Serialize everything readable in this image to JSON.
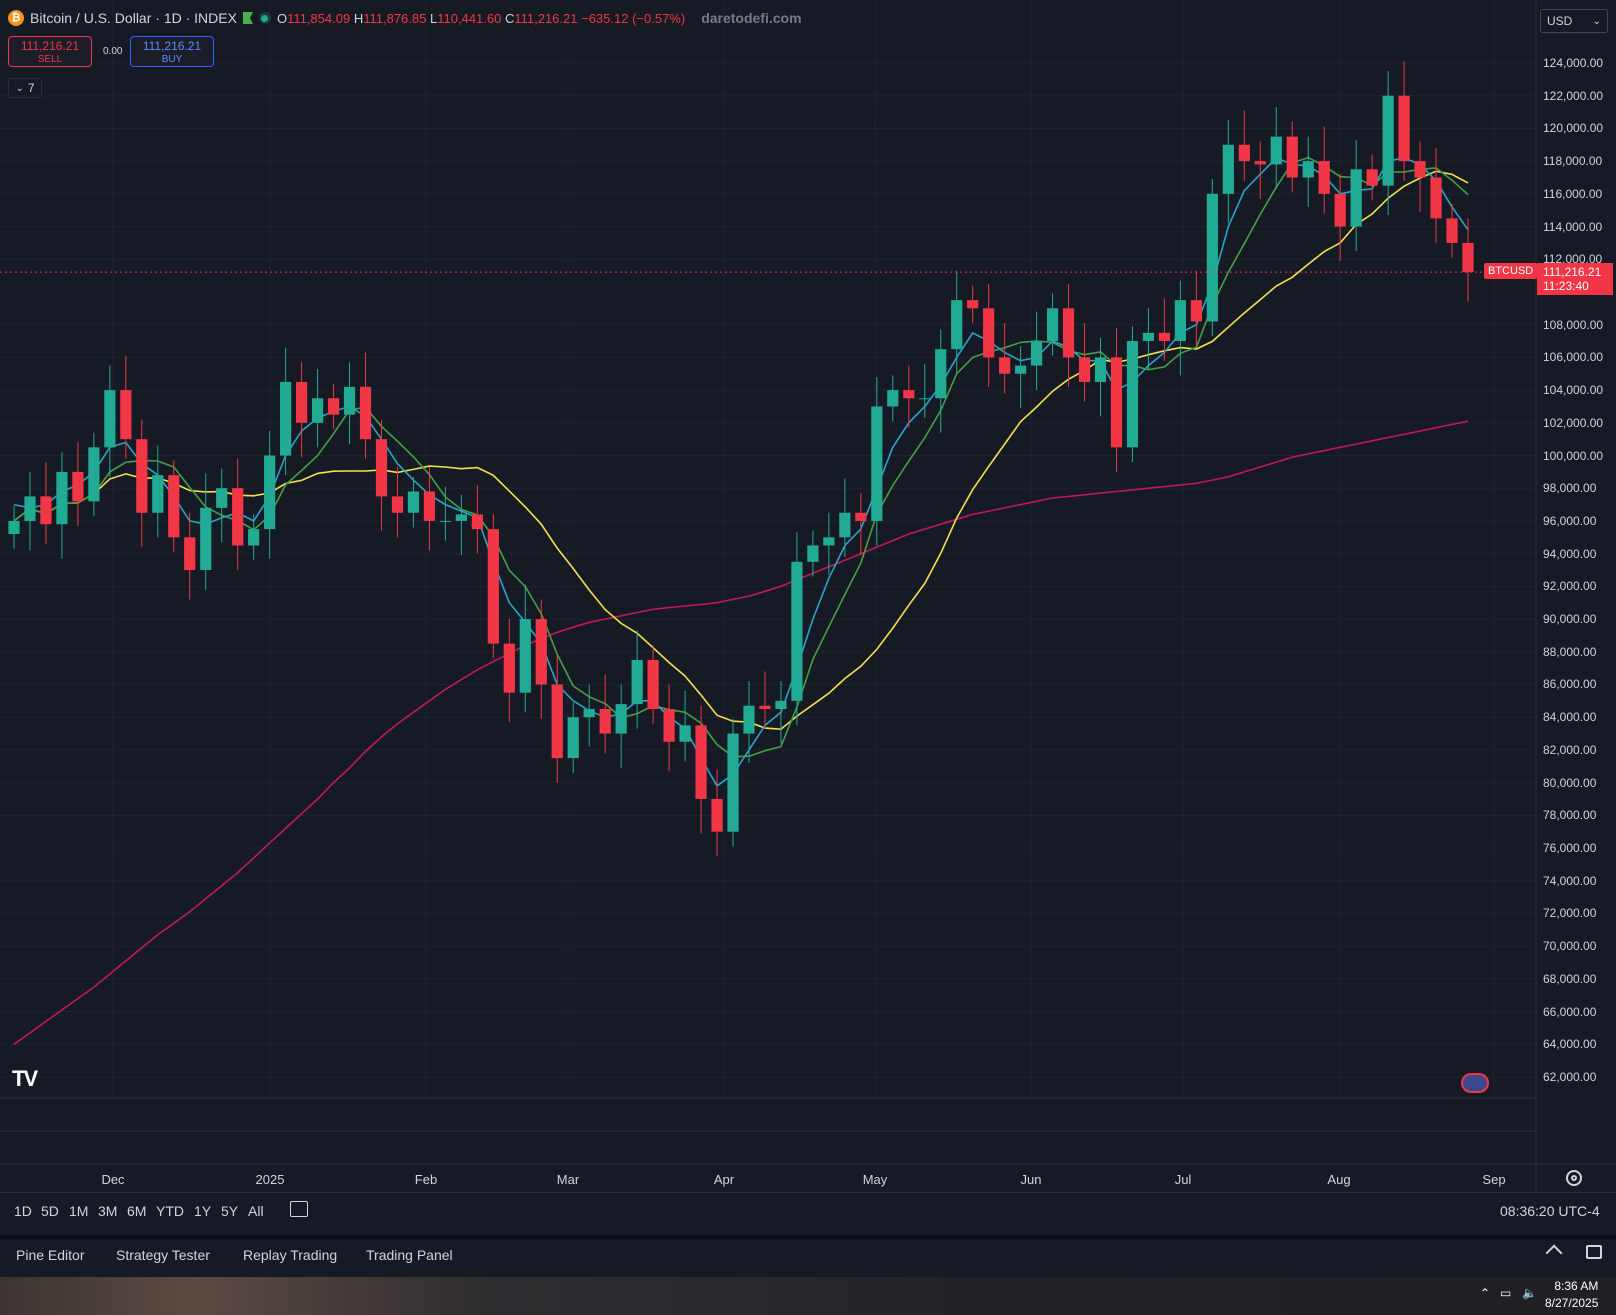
{
  "header": {
    "title": "Bitcoin / U.S. Dollar · 1D · INDEX",
    "coin_glyph": "₿",
    "ohlc": {
      "open_label": "O",
      "open": "111,854.09",
      "high_label": "H",
      "high": "111,876.85",
      "low_label": "L",
      "low": "110,441.60",
      "close_label": "C",
      "close": "111,216.21",
      "change": "−635.12 (−0.57%)"
    },
    "watermark": "daretodefi.com"
  },
  "trade": {
    "sell_price": "111,216.21",
    "sell_label": "SELL",
    "spread": "0.00",
    "buy_price": "111,216.21",
    "buy_label": "BUY"
  },
  "indicators_collapse": {
    "count": "7",
    "chevron": "chevron-down-icon"
  },
  "currency_select": {
    "value": "USD"
  },
  "price_axis": {
    "labels": [
      "124,000.00",
      "122,000.00",
      "120,000.00",
      "118,000.00",
      "116,000.00",
      "114,000.00",
      "112,000.00",
      "108,000.00",
      "106,000.00",
      "104,000.00",
      "102,000.00",
      "100,000.00",
      "98,000.00",
      "96,000.00",
      "94,000.00",
      "92,000.00",
      "90,000.00",
      "88,000.00",
      "86,000.00",
      "84,000.00",
      "82,000.00",
      "80,000.00",
      "78,000.00",
      "76,000.00",
      "74,000.00",
      "72,000.00",
      "70,000.00",
      "68,000.00",
      "66,000.00",
      "64,000.00",
      "62,000.00"
    ],
    "current_symbol": "BTCUSD",
    "current_price": "111,216.21",
    "countdown": "11:23:40"
  },
  "time_axis": {
    "months": [
      "Dec",
      "2025",
      "Feb",
      "Mar",
      "Apr",
      "May",
      "Jun",
      "Jul",
      "Aug",
      "Sep"
    ]
  },
  "range_bar": {
    "ranges": [
      "1D",
      "5D",
      "1M",
      "3M",
      "6M",
      "YTD",
      "1Y",
      "5Y",
      "All"
    ],
    "clock": "08:36:20 UTC-4"
  },
  "bottom_panels": {
    "tabs": [
      "Pine Editor",
      "Strategy Tester",
      "Replay Trading",
      "Trading Panel"
    ]
  },
  "taskbar": {
    "time": "8:36 AM",
    "date": "8/27/2025"
  },
  "colors": {
    "up": "#22ab94",
    "down": "#f23645",
    "ma_fast": "#26a6c9",
    "ma_mid": "#43a047",
    "ma_slow": "#f2e14d",
    "ma_long": "#c2185b",
    "background": "#161a25"
  },
  "chart_data": {
    "type": "candlestick",
    "x": [
      "Nov 27",
      "Nov 30",
      "Dec 3",
      "Dec 6",
      "Dec 9",
      "Dec 12",
      "Dec 15",
      "Dec 18",
      "Dec 21",
      "Dec 24",
      "Dec 27",
      "Dec 30",
      "Jan 2",
      "Jan 5",
      "Jan 8",
      "Jan 11",
      "Jan 14",
      "Jan 17",
      "Jan 20",
      "Jan 23",
      "Jan 26",
      "Jan 29",
      "Feb 1",
      "Feb 4",
      "Feb 7",
      "Feb 10",
      "Feb 13",
      "Feb 16",
      "Feb 19",
      "Feb 22",
      "Feb 25",
      "Feb 28",
      "Mar 3",
      "Mar 6",
      "Mar 9",
      "Mar 12",
      "Mar 15",
      "Mar 18",
      "Mar 21",
      "Mar 24",
      "Mar 27",
      "Mar 30",
      "Apr 2",
      "Apr 5",
      "Apr 8",
      "Apr 11",
      "Apr 14",
      "Apr 17",
      "Apr 20",
      "Apr 23",
      "Apr 26",
      "Apr 29",
      "May 2",
      "May 5",
      "May 8",
      "May 11",
      "May 14",
      "May 17",
      "May 20",
      "May 23",
      "May 26",
      "May 29",
      "Jun 1",
      "Jun 4",
      "Jun 7",
      "Jun 10",
      "Jun 13",
      "Jun 16",
      "Jun 19",
      "Jun 22",
      "Jun 25",
      "Jun 28",
      "Jul 1",
      "Jul 4",
      "Jul 7",
      "Jul 10",
      "Jul 13",
      "Jul 16",
      "Jul 19",
      "Jul 22",
      "Jul 25",
      "Jul 28",
      "Jul 31",
      "Aug 3",
      "Aug 6",
      "Aug 9",
      "Aug 12",
      "Aug 15",
      "Aug 18",
      "Aug 21",
      "Aug 24",
      "Aug 27"
    ],
    "close": [
      96000,
      97500,
      95800,
      99000,
      97200,
      100500,
      104000,
      101000,
      96500,
      98800,
      95000,
      93000,
      96800,
      98000,
      94500,
      95500,
      100000,
      104500,
      102000,
      103500,
      102500,
      104200,
      101000,
      97500,
      96500,
      97800,
      96000,
      96000,
      96400,
      95500,
      88500,
      85500,
      90000,
      86000,
      81500,
      84000,
      84500,
      83000,
      84800,
      87500,
      84500,
      82500,
      83500,
      79000,
      77000,
      83000,
      84700,
      84500,
      85000,
      93500,
      94500,
      95000,
      96500,
      96000,
      103000,
      104000,
      103500,
      103500,
      106500,
      109500,
      109000,
      106000,
      105000,
      105500,
      107000,
      109000,
      106000,
      104500,
      106000,
      100500,
      107000,
      107500,
      107000,
      109500,
      108200,
      116000,
      119000,
      118000,
      117800,
      119500,
      117000,
      118000,
      116000,
      114000,
      117500,
      116500,
      122000,
      118000,
      117000,
      114500,
      113000,
      111216
    ],
    "ma_fast_approx": [
      97000,
      96800,
      97000,
      97800,
      98200,
      99000,
      100500,
      100800,
      99500,
      98800,
      97500,
      96000,
      95800,
      96200,
      96500,
      96000,
      97500,
      100000,
      101500,
      102300,
      102700,
      103000,
      102400,
      101000,
      99500,
      98500,
      97600,
      97000,
      96600,
      96200,
      93500,
      91000,
      89800,
      88500,
      86000,
      85000,
      84400,
      84000,
      84200,
      85000,
      85000,
      84000,
      83300,
      81500,
      79800,
      80500,
      82000,
      83500,
      84300,
      87000,
      90000,
      92500,
      94500,
      95500,
      98000,
      100500,
      102000,
      103000,
      104300,
      106000,
      107500,
      107000,
      106300,
      105800,
      106000,
      107000,
      106600,
      105800,
      105800,
      104000,
      104500,
      105500,
      106300,
      107500,
      108000,
      110500,
      114000,
      116200,
      117200,
      118200,
      117800,
      117700,
      117100,
      116000,
      116200,
      116300,
      118000,
      118200,
      117800,
      116800,
      115200,
      113800
    ],
    "ma_long_approx": [
      64000,
      64700,
      65400,
      66100,
      66800,
      67500,
      68300,
      69100,
      69900,
      70700,
      71400,
      72100,
      72900,
      73700,
      74500,
      75400,
      76300,
      77200,
      78100,
      79000,
      80000,
      80900,
      81900,
      82800,
      83600,
      84300,
      85000,
      85700,
      86300,
      86900,
      87400,
      87900,
      88400,
      88800,
      89200,
      89500,
      89800,
      90000,
      90200,
      90400,
      90600,
      90700,
      90800,
      90900,
      91000,
      91200,
      91400,
      91700,
      92000,
      92400,
      92800,
      93200,
      93600,
      94000,
      94400,
      94800,
      95200,
      95500,
      95800,
      96100,
      96400,
      96600,
      96800,
      97000,
      97200,
      97400,
      97500,
      97600,
      97700,
      97800,
      97900,
      98000,
      98100,
      98200,
      98300,
      98500,
      98700,
      99000,
      99300,
      99600,
      99900,
      100100,
      100300,
      100500,
      100700,
      100900,
      101100,
      101300,
      101500,
      101700,
      101900,
      102100
    ]
  }
}
